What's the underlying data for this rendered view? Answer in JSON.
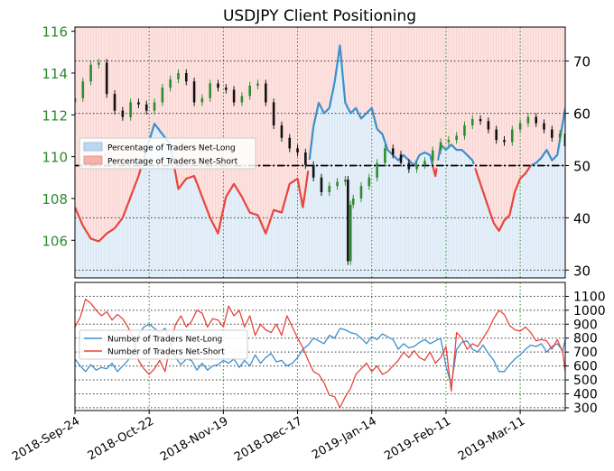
{
  "chart_data": [
    {
      "type": "line",
      "title": "USDJPY Client Positioning",
      "left_axis": {
        "ylim": [
          104.2,
          116.2
        ],
        "ticks": [
          106,
          108,
          110,
          112,
          114,
          116
        ],
        "tick_color": "#2e8b2e"
      },
      "right_axis": {
        "ylim": [
          28.5,
          76.5
        ],
        "ticks": [
          30,
          40,
          50,
          60,
          70
        ]
      },
      "x_ticks": [
        "2018-Sep-24",
        "2018-Oct-22",
        "2018-Nov-19",
        "2018-Dec-17",
        "2019-Jan-14",
        "2019-Feb-11",
        "2019-Mar-11"
      ],
      "x_tick_days": [
        0,
        28,
        56,
        84,
        112,
        140,
        168
      ],
      "x_range_days": [
        0,
        185
      ],
      "grid": true,
      "reference_line": {
        "value": 50,
        "style": "dash-dot",
        "color": "#000000"
      },
      "legend": {
        "placement": "left",
        "entries": [
          {
            "label": "Percentage of Traders Net-Long",
            "color": "#bcd7f0"
          },
          {
            "label": "Percentage of Traders Net-Short",
            "color": "#f2b3ad"
          }
        ]
      },
      "price_series": {
        "name": "USDJPY",
        "up_color": "#2e8b2e",
        "down_color": "#111111",
        "days": [
          0,
          3,
          6,
          9,
          12,
          15,
          18,
          21,
          24,
          27,
          30,
          33,
          36,
          39,
          42,
          45,
          48,
          51,
          54,
          57,
          60,
          63,
          66,
          69,
          72,
          75,
          78,
          81,
          84,
          87,
          90,
          93,
          96,
          99,
          102,
          103,
          104,
          105,
          108,
          111,
          114,
          117,
          120,
          123,
          126,
          129,
          132,
          135,
          138,
          141,
          144,
          147,
          150,
          153,
          156,
          159,
          162,
          165,
          168,
          171,
          174,
          177,
          180,
          183,
          185
        ],
        "close": [
          112.8,
          113.6,
          114.4,
          114.5,
          113.0,
          112.2,
          111.9,
          112.6,
          112.5,
          112.2,
          112.6,
          113.3,
          113.7,
          114.0,
          113.6,
          112.6,
          112.8,
          113.5,
          113.3,
          113.2,
          112.6,
          112.9,
          113.4,
          113.5,
          112.6,
          111.5,
          110.9,
          110.4,
          110.2,
          109.6,
          109.0,
          108.3,
          108.6,
          108.8,
          108.9,
          105.0,
          107.7,
          108.0,
          108.6,
          109.0,
          109.7,
          110.4,
          110.1,
          109.7,
          109.4,
          109.6,
          109.8,
          110.3,
          110.7,
          110.8,
          111.0,
          111.5,
          111.8,
          111.7,
          111.3,
          110.8,
          110.7,
          111.3,
          111.6,
          111.9,
          111.6,
          111.3,
          110.9,
          111.1,
          110.5
        ]
      },
      "series": [
        {
          "name": "Percentage of Traders Net-Long",
          "color": "#3d8fcc",
          "x": [
            0,
            3,
            6,
            9,
            12,
            15,
            18,
            21,
            24,
            27,
            30,
            33,
            36,
            39,
            42,
            45,
            48,
            51,
            54,
            57,
            60,
            63,
            66,
            69,
            72,
            75,
            78,
            81,
            84,
            86,
            88,
            90,
            92,
            94,
            96,
            98,
            100,
            102,
            104,
            106,
            108,
            110,
            112,
            114,
            116,
            118,
            120,
            122,
            124,
            126,
            128,
            130,
            132,
            134,
            136,
            138,
            140,
            142,
            144,
            146,
            148,
            150,
            152,
            154,
            156,
            158,
            160,
            162,
            164,
            166,
            168,
            170,
            172,
            174,
            176,
            178,
            180,
            182,
            184,
            185
          ],
          "values": [
            42,
            38.5,
            36,
            35.5,
            37,
            38,
            40,
            44,
            48,
            53,
            58,
            56,
            54,
            45.5,
            47.5,
            48,
            44,
            40,
            37,
            44,
            46.5,
            44,
            41,
            40.5,
            37,
            41.5,
            41,
            46.5,
            47.5,
            42,
            49,
            57.5,
            62,
            60,
            61,
            66,
            73,
            62,
            60,
            61,
            59,
            60,
            61,
            57,
            56,
            53,
            52,
            51,
            52,
            51,
            50,
            52,
            52.5,
            52,
            48,
            54,
            53,
            54,
            53,
            53,
            52,
            51,
            48,
            45,
            42,
            39,
            37.5,
            39.5,
            40.5,
            45,
            47.5,
            48.5,
            50,
            50.5,
            51.5,
            53,
            51,
            52,
            58,
            61
          ]
        },
        {
          "name": "Percentage of Traders Net-Short",
          "color": "#e8453c",
          "x": [
            0,
            3,
            6,
            9,
            12,
            15,
            18,
            21,
            24,
            27,
            30,
            33,
            36,
            39,
            42,
            45,
            48,
            51,
            54,
            57,
            60,
            63,
            66,
            69,
            72,
            75,
            78,
            81,
            84,
            86,
            88,
            90,
            92,
            94,
            96,
            98,
            100,
            102,
            104,
            106,
            108,
            110,
            112,
            114,
            116,
            118,
            120,
            122,
            124,
            126,
            128,
            130,
            132,
            134,
            136,
            138,
            140,
            142,
            144,
            146,
            148,
            150,
            152,
            154,
            156,
            158,
            160,
            162,
            164,
            166,
            168,
            170,
            172,
            174,
            176,
            178,
            180,
            182,
            184,
            185
          ],
          "values": [
            42,
            38.5,
            36,
            35.5,
            37,
            38,
            40,
            44,
            48,
            53,
            58,
            56,
            54,
            45.5,
            47.5,
            48,
            44,
            40,
            37,
            44,
            46.5,
            44,
            41,
            40.5,
            37,
            41.5,
            41,
            46.5,
            47.5,
            42,
            49,
            57.5,
            62,
            60,
            61,
            66,
            73,
            62,
            60,
            61,
            59,
            60,
            61,
            57,
            56,
            53,
            52,
            51,
            52,
            51,
            50,
            52,
            52.5,
            52,
            48,
            54,
            53,
            54,
            53,
            53,
            52,
            51,
            48,
            45,
            42,
            39,
            37.5,
            39.5,
            40.5,
            45,
            47.5,
            48.5,
            50,
            50.5,
            51.5,
            53,
            51,
            52,
            58,
            61
          ]
        }
      ]
    },
    {
      "type": "line",
      "y_axis": {
        "ylim": [
          280,
          1200
        ],
        "ticks": [
          300,
          400,
          500,
          600,
          700,
          800,
          900,
          1000,
          1100
        ]
      },
      "x_range_days": [
        0,
        185
      ],
      "grid": true,
      "legend": {
        "placement": "left",
        "entries": [
          {
            "label": "Number of Traders Net-Long",
            "color": "#3d8fcc"
          },
          {
            "label": "Number of Traders Net-Short",
            "color": "#e8453c"
          }
        ]
      },
      "series": [
        {
          "name": "Number of Traders Net-Long",
          "color": "#3d8fcc",
          "x": [
            0,
            2,
            4,
            6,
            8,
            10,
            12,
            14,
            16,
            18,
            20,
            22,
            24,
            26,
            28,
            30,
            32,
            34,
            36,
            38,
            40,
            42,
            44,
            46,
            48,
            50,
            52,
            54,
            56,
            58,
            60,
            62,
            64,
            66,
            68,
            70,
            72,
            74,
            76,
            78,
            80,
            82,
            84,
            86,
            88,
            90,
            92,
            94,
            96,
            98,
            100,
            102,
            104,
            106,
            108,
            110,
            112,
            114,
            116,
            118,
            120,
            122,
            124,
            126,
            128,
            130,
            132,
            134,
            136,
            138,
            140,
            142,
            144,
            146,
            148,
            150,
            152,
            154,
            156,
            158,
            160,
            162,
            164,
            166,
            168,
            170,
            172,
            174,
            176,
            178,
            180,
            182,
            184,
            185
          ],
          "values": [
            650,
            600,
            560,
            610,
            570,
            590,
            580,
            620,
            560,
            600,
            640,
            700,
            820,
            880,
            900,
            870,
            840,
            870,
            780,
            660,
            610,
            650,
            640,
            570,
            620,
            570,
            600,
            610,
            640,
            620,
            650,
            590,
            640,
            600,
            680,
            620,
            660,
            690,
            630,
            640,
            600,
            620,
            660,
            720,
            750,
            800,
            780,
            760,
            820,
            800,
            870,
            860,
            840,
            830,
            800,
            760,
            810,
            790,
            830,
            810,
            790,
            720,
            760,
            730,
            740,
            770,
            790,
            760,
            780,
            800,
            600,
            460,
            720,
            770,
            780,
            720,
            700,
            750,
            690,
            640,
            560,
            560,
            610,
            650,
            680,
            720,
            750,
            740,
            760,
            700,
            740,
            760,
            710,
            790
          ]
        },
        {
          "name": "Number of Traders Net-Short",
          "color": "#e8453c",
          "x": [
            0,
            2,
            4,
            6,
            8,
            10,
            12,
            14,
            16,
            18,
            20,
            22,
            24,
            26,
            28,
            30,
            32,
            34,
            36,
            38,
            40,
            42,
            44,
            46,
            48,
            50,
            52,
            54,
            56,
            58,
            60,
            62,
            64,
            66,
            68,
            70,
            72,
            74,
            76,
            78,
            80,
            82,
            84,
            86,
            88,
            90,
            92,
            94,
            96,
            98,
            100,
            102,
            104,
            106,
            108,
            110,
            112,
            114,
            116,
            118,
            120,
            122,
            124,
            126,
            128,
            130,
            132,
            134,
            136,
            138,
            140,
            142,
            144,
            146,
            148,
            150,
            152,
            154,
            156,
            158,
            160,
            162,
            164,
            166,
            168,
            170,
            172,
            174,
            176,
            178,
            180,
            182,
            184,
            185
          ],
          "values": [
            880,
            950,
            1080,
            1050,
            1000,
            960,
            990,
            930,
            970,
            940,
            880,
            800,
            640,
            580,
            540,
            580,
            640,
            560,
            760,
            900,
            960,
            880,
            920,
            1000,
            980,
            880,
            940,
            930,
            880,
            1030,
            960,
            1000,
            880,
            960,
            820,
            900,
            860,
            840,
            900,
            820,
            960,
            880,
            800,
            730,
            640,
            560,
            540,
            480,
            390,
            380,
            300,
            380,
            440,
            540,
            580,
            620,
            560,
            600,
            540,
            560,
            600,
            640,
            700,
            660,
            710,
            660,
            640,
            700,
            620,
            660,
            740,
            420,
            840,
            800,
            720,
            760,
            740,
            800,
            860,
            940,
            1000,
            970,
            890,
            860,
            850,
            880,
            840,
            780,
            790,
            780,
            720,
            790,
            700,
            560
          ]
        }
      ]
    }
  ]
}
